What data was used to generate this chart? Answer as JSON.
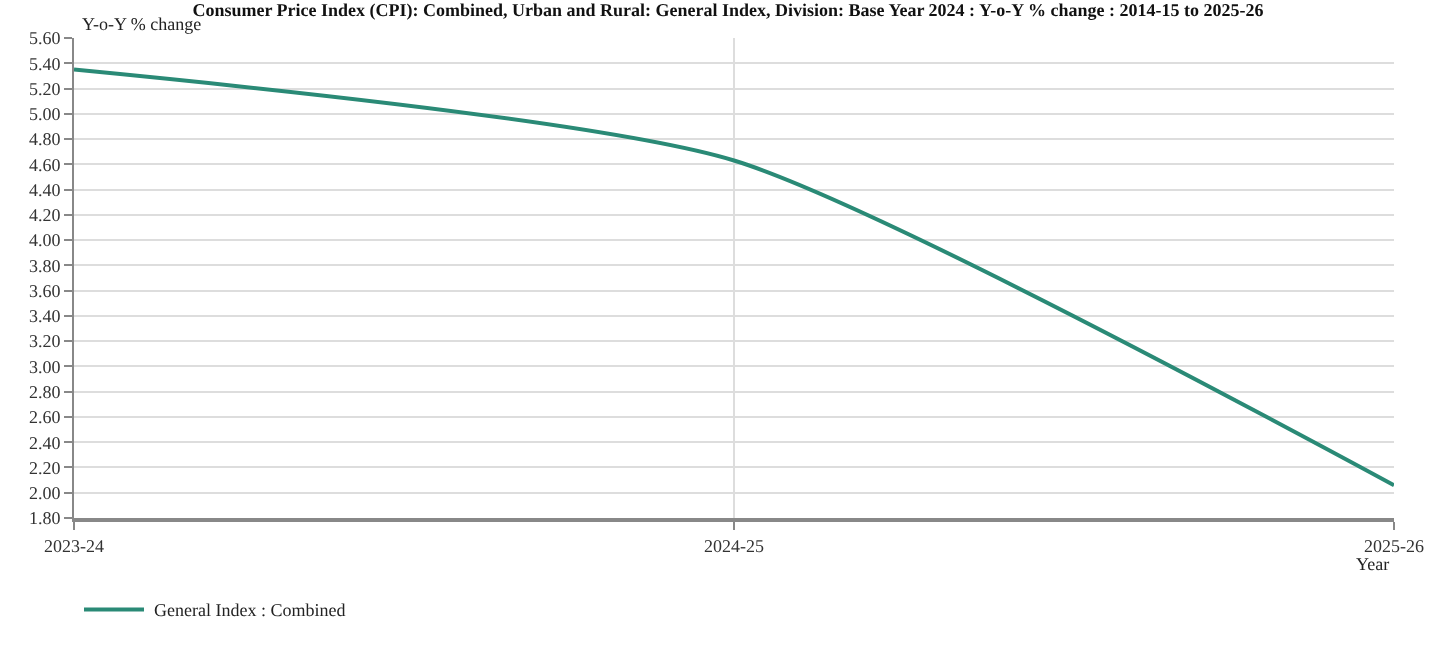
{
  "chart_data": {
    "type": "line",
    "title": "Consumer Price Index (CPI): Combined, Urban and Rural: General Index, Division: Base Year 2024 : Y-o-Y % change : 2014-15 to 2025-26",
    "xlabel": "Year",
    "ylabel": "Y-o-Y % change",
    "categories": [
      "2023-24",
      "2024-25",
      "2025-26"
    ],
    "series": [
      {
        "name": "General Index : Combined",
        "color": "#2a8a76",
        "values": [
          5.35,
          4.63,
          2.06
        ]
      }
    ],
    "ylim": [
      1.8,
      5.6
    ],
    "yticks": [
      {
        "value": 1.8,
        "label": "1.80"
      },
      {
        "value": 2.0,
        "label": "2.00"
      },
      {
        "value": 2.2,
        "label": "2.20"
      },
      {
        "value": 2.4,
        "label": "2.40"
      },
      {
        "value": 2.6,
        "label": "2.60"
      },
      {
        "value": 2.8,
        "label": "2.80"
      },
      {
        "value": 3.0,
        "label": "3.00"
      },
      {
        "value": 3.2,
        "label": "3.20"
      },
      {
        "value": 3.4,
        "label": "3.40"
      },
      {
        "value": 3.6,
        "label": "3.60"
      },
      {
        "value": 3.8,
        "label": "3.80"
      },
      {
        "value": 4.0,
        "label": "4.00"
      },
      {
        "value": 4.2,
        "label": "4.20"
      },
      {
        "value": 4.4,
        "label": "4.40"
      },
      {
        "value": 4.6,
        "label": "4.60"
      },
      {
        "value": 4.8,
        "label": "4.80"
      },
      {
        "value": 5.0,
        "label": "5.00"
      },
      {
        "value": 5.2,
        "label": "5.20"
      },
      {
        "value": 5.4,
        "label": "5.40"
      },
      {
        "value": 5.6,
        "label": "5.60"
      }
    ],
    "grid": true,
    "legend": "bottom left",
    "marker": "none",
    "line_style": "solid"
  }
}
